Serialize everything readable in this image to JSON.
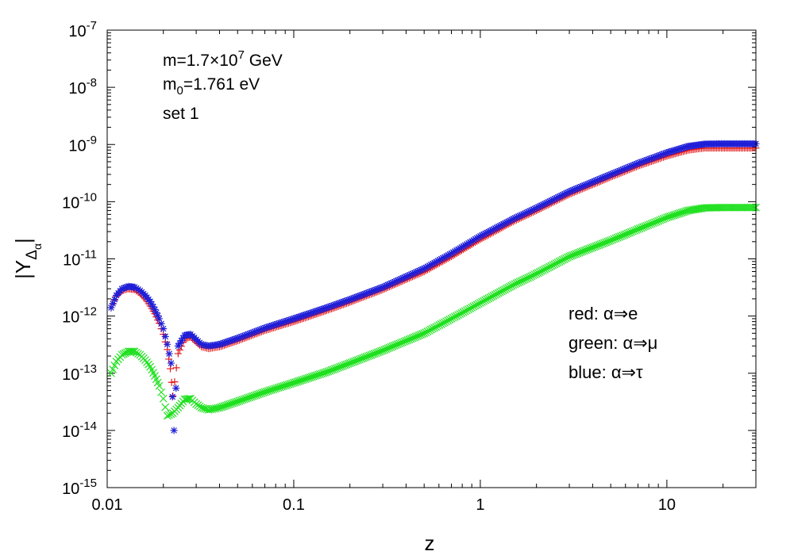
{
  "chart_data": {
    "type": "scatter",
    "title": "",
    "xlabel": "z",
    "ylabel_main": "|Y",
    "ylabel_sub1": "Δ",
    "ylabel_sub2": "α",
    "ylabel_close": "|",
    "xscale": "log",
    "yscale": "log",
    "xlim": [
      0.01,
      30
    ],
    "ylim": [
      1e-15,
      1e-07
    ],
    "x_ticks": [
      {
        "value": 0.01,
        "label": "0.01"
      },
      {
        "value": 0.1,
        "label": "0.1"
      },
      {
        "value": 1,
        "label": "1"
      },
      {
        "value": 10,
        "label": "10"
      }
    ],
    "y_ticks": [
      {
        "exp": -15,
        "base": "10",
        "sup": "-15"
      },
      {
        "exp": -14,
        "base": "10",
        "sup": "-14"
      },
      {
        "exp": -13,
        "base": "10",
        "sup": "-13"
      },
      {
        "exp": -12,
        "base": "10",
        "sup": "-12"
      },
      {
        "exp": -11,
        "base": "10",
        "sup": "-11"
      },
      {
        "exp": -10,
        "base": "10",
        "sup": "-10"
      },
      {
        "exp": -9,
        "base": "10",
        "sup": "-9"
      },
      {
        "exp": -8,
        "base": "10",
        "sup": "-8"
      },
      {
        "exp": -7,
        "base": "10",
        "sup": "-7"
      }
    ],
    "annotations": {
      "mass_prefix": "m=1.7×10",
      "mass_exp": "7",
      "mass_unit": " GeV",
      "m0_prefix": "m",
      "m0_sub": "0",
      "m0_value": "=1.761 eV",
      "set_label": "set 1"
    },
    "legend": {
      "position": "center-right",
      "entries": [
        {
          "text": "red: α⇒e",
          "color": "#e31a1c"
        },
        {
          "text": "green: α⇒μ",
          "color": "#1ee01e"
        },
        {
          "text": "blue: α⇒τ",
          "color": "#1f1fd8"
        }
      ]
    },
    "series": [
      {
        "name": "red: α⇒e",
        "color": "#e31a1c",
        "marker": "plus",
        "points": [
          [
            0.0105,
            1.4e-12
          ],
          [
            0.0112,
            2.2e-12
          ],
          [
            0.012,
            2.8e-12
          ],
          [
            0.013,
            3e-12
          ],
          [
            0.014,
            2.9e-12
          ],
          [
            0.015,
            2.5e-12
          ],
          [
            0.016,
            2e-12
          ],
          [
            0.017,
            1.5e-12
          ],
          [
            0.018,
            1.1e-12
          ],
          [
            0.019,
            7.5e-13
          ],
          [
            0.02,
            4.8e-13
          ],
          [
            0.021,
            2.6e-13
          ],
          [
            0.0218,
            1.2e-13
          ],
          [
            0.0225,
            4e-14
          ],
          [
            0.024,
            2.2e-13
          ],
          [
            0.026,
            4e-13
          ],
          [
            0.028,
            4.3e-13
          ],
          [
            0.03,
            3.5e-13
          ],
          [
            0.032,
            2.9e-13
          ],
          [
            0.035,
            2.7e-13
          ],
          [
            0.04,
            2.9e-13
          ],
          [
            0.05,
            3.7e-13
          ],
          [
            0.07,
            5.6e-13
          ],
          [
            0.1,
            8e-13
          ],
          [
            0.15,
            1.25e-12
          ],
          [
            0.2,
            1.75e-12
          ],
          [
            0.3,
            2.9e-12
          ],
          [
            0.5,
            6e-12
          ],
          [
            0.7,
            1.1e-11
          ],
          [
            1.0,
            2.2e-11
          ],
          [
            1.5,
            4.5e-11
          ],
          [
            2.0,
            7e-11
          ],
          [
            3.0,
            1.35e-10
          ],
          [
            5.0,
            2.7e-10
          ],
          [
            7.0,
            4.2e-10
          ],
          [
            10,
            6.3e-10
          ],
          [
            13,
            8e-10
          ],
          [
            16,
            8.7e-10
          ],
          [
            20,
            8.7e-10
          ],
          [
            30,
            8.7e-10
          ]
        ]
      },
      {
        "name": "green: α⇒μ",
        "color": "#1ee01e",
        "marker": "cross",
        "points": [
          [
            0.0105,
            1e-13
          ],
          [
            0.0112,
            1.6e-13
          ],
          [
            0.012,
            2.1e-13
          ],
          [
            0.013,
            2.4e-13
          ],
          [
            0.014,
            2.4e-13
          ],
          [
            0.015,
            2.1e-13
          ],
          [
            0.016,
            1.7e-13
          ],
          [
            0.017,
            1.3e-13
          ],
          [
            0.018,
            9e-14
          ],
          [
            0.019,
            6e-14
          ],
          [
            0.02,
            3.6e-14
          ],
          [
            0.021,
            1.8e-14
          ],
          [
            0.0225,
            2e-14
          ],
          [
            0.024,
            2.5e-14
          ],
          [
            0.026,
            3.5e-14
          ],
          [
            0.028,
            3.6e-14
          ],
          [
            0.03,
            2.9e-14
          ],
          [
            0.032,
            2.5e-14
          ],
          [
            0.035,
            2.3e-14
          ],
          [
            0.04,
            2.5e-14
          ],
          [
            0.05,
            3.2e-14
          ],
          [
            0.07,
            4.7e-14
          ],
          [
            0.1,
            6.8e-14
          ],
          [
            0.15,
            1.05e-13
          ],
          [
            0.2,
            1.5e-13
          ],
          [
            0.3,
            2.5e-13
          ],
          [
            0.5,
            5e-13
          ],
          [
            0.7,
            9e-13
          ],
          [
            1.0,
            1.7e-12
          ],
          [
            1.5,
            3.5e-12
          ],
          [
            2.0,
            5.5e-12
          ],
          [
            3.0,
            1.1e-11
          ],
          [
            5.0,
            2.1e-11
          ],
          [
            7.0,
            3.3e-11
          ],
          [
            10,
            5.3e-11
          ],
          [
            13,
            7e-11
          ],
          [
            16,
            7.8e-11
          ],
          [
            20,
            7.9e-11
          ],
          [
            30,
            7.9e-11
          ]
        ]
      },
      {
        "name": "blue: α⇒τ",
        "color": "#1f1fd8",
        "marker": "star",
        "points": [
          [
            0.0105,
            1.4e-12
          ],
          [
            0.0112,
            2.3e-12
          ],
          [
            0.012,
            3e-12
          ],
          [
            0.013,
            3.3e-12
          ],
          [
            0.014,
            3.2e-12
          ],
          [
            0.015,
            2.8e-12
          ],
          [
            0.016,
            2.3e-12
          ],
          [
            0.017,
            1.8e-12
          ],
          [
            0.018,
            1.3e-12
          ],
          [
            0.019,
            9e-13
          ],
          [
            0.02,
            6e-13
          ],
          [
            0.021,
            3.2e-13
          ],
          [
            0.022,
            1.5e-13
          ],
          [
            0.0228,
            1e-14
          ],
          [
            0.024,
            3e-13
          ],
          [
            0.026,
            4.6e-13
          ],
          [
            0.028,
            4.8e-13
          ],
          [
            0.03,
            3.9e-13
          ],
          [
            0.032,
            3.2e-13
          ],
          [
            0.035,
            3e-13
          ],
          [
            0.04,
            3.2e-13
          ],
          [
            0.05,
            4.1e-13
          ],
          [
            0.07,
            6.2e-13
          ],
          [
            0.1,
            9e-13
          ],
          [
            0.15,
            1.4e-12
          ],
          [
            0.2,
            1.95e-12
          ],
          [
            0.3,
            3.2e-12
          ],
          [
            0.5,
            6.8e-12
          ],
          [
            0.7,
            1.25e-11
          ],
          [
            1.0,
            2.5e-11
          ],
          [
            1.5,
            5e-11
          ],
          [
            2.0,
            7.8e-11
          ],
          [
            3.0,
            1.5e-10
          ],
          [
            5.0,
            3e-10
          ],
          [
            7.0,
            4.7e-10
          ],
          [
            10,
            7.2e-10
          ],
          [
            13,
            9.3e-10
          ],
          [
            16,
            1.02e-09
          ],
          [
            20,
            1.03e-09
          ],
          [
            30,
            1.03e-09
          ]
        ]
      }
    ]
  }
}
